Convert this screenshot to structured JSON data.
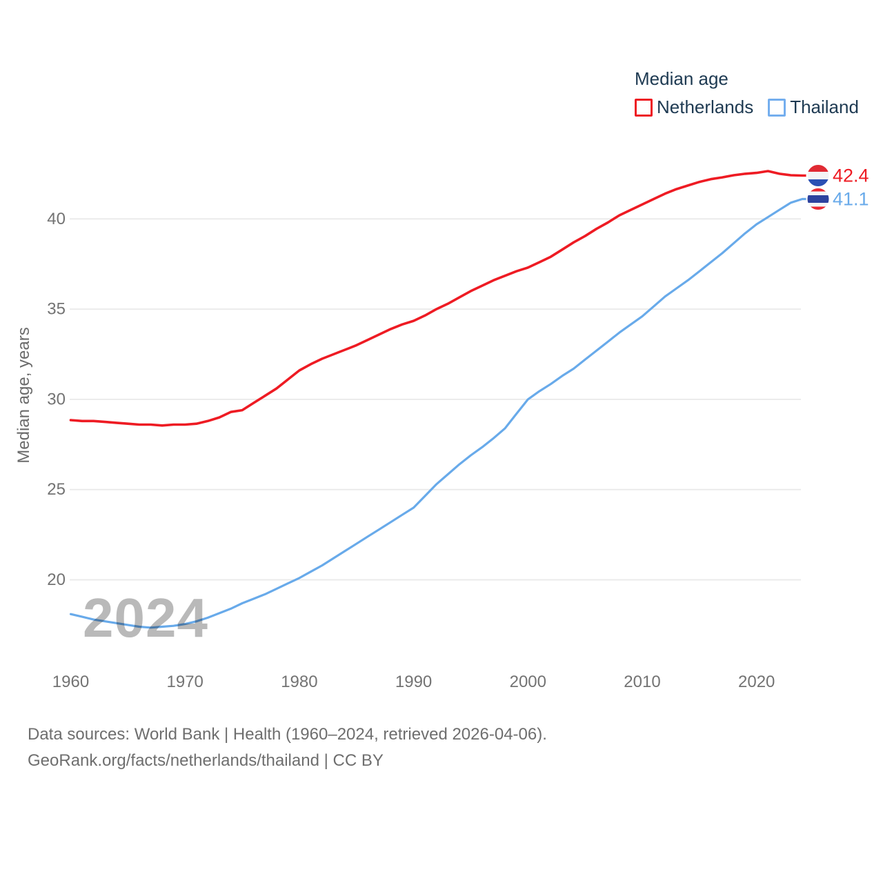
{
  "legend": {
    "title": "Median age",
    "items": [
      {
        "label": "Netherlands",
        "color": "#ee1b23"
      },
      {
        "label": "Thailand",
        "color": "#74aeee"
      }
    ]
  },
  "footer": {
    "line1": "Data sources: World Bank | Health (1960–2024, retrieved 2026-04-06).",
    "line2": "GeoRank.org/facts/netherlands/thailand | CC BY"
  },
  "chart_data": {
    "type": "line",
    "title": "Median age",
    "xlabel": "",
    "ylabel": "Median age, years",
    "grid": "horizontal",
    "legend_position": "top-right",
    "watermark": "2024",
    "xlim": [
      1960,
      2024
    ],
    "ylim": [
      17,
      43.5
    ],
    "xticks": [
      1960,
      1970,
      1980,
      1990,
      2000,
      2010,
      2020
    ],
    "yticks": [
      20,
      25,
      30,
      35,
      40
    ],
    "years": [
      1960,
      1961,
      1962,
      1963,
      1964,
      1965,
      1966,
      1967,
      1968,
      1969,
      1970,
      1971,
      1972,
      1973,
      1974,
      1975,
      1976,
      1977,
      1978,
      1979,
      1980,
      1981,
      1982,
      1983,
      1984,
      1985,
      1986,
      1987,
      1988,
      1989,
      1990,
      1991,
      1992,
      1993,
      1994,
      1995,
      1996,
      1997,
      1998,
      1999,
      2000,
      2001,
      2002,
      2003,
      2004,
      2005,
      2006,
      2007,
      2008,
      2009,
      2010,
      2011,
      2012,
      2013,
      2014,
      2015,
      2016,
      2017,
      2018,
      2019,
      2020,
      2021,
      2022,
      2023,
      2024
    ],
    "series": [
      {
        "name": "Netherlands",
        "color": "#ee1b23",
        "line_width": 3.6,
        "end_value": 42.4,
        "end_label": "42.4",
        "flag_icon": "netherlands-flag",
        "flag_stripes": [
          [
            "#e02a33",
            0.3333
          ],
          [
            "#f4f4f4",
            0.3334
          ],
          [
            "#2b50b4",
            0.3333
          ]
        ],
        "values": [
          28.85,
          28.8,
          28.8,
          28.75,
          28.7,
          28.65,
          28.6,
          28.6,
          28.55,
          28.6,
          28.6,
          28.65,
          28.8,
          29.0,
          29.3,
          29.4,
          29.8,
          30.2,
          30.6,
          31.1,
          31.6,
          31.95,
          32.25,
          32.5,
          32.75,
          33.0,
          33.3,
          33.6,
          33.9,
          34.15,
          34.35,
          34.65,
          35.0,
          35.3,
          35.65,
          36.0,
          36.3,
          36.6,
          36.85,
          37.1,
          37.3,
          37.6,
          37.9,
          38.3,
          38.7,
          39.05,
          39.45,
          39.8,
          40.2,
          40.5,
          40.8,
          41.1,
          41.4,
          41.65,
          41.85,
          42.05,
          42.2,
          42.3,
          42.42,
          42.5,
          42.55,
          42.65,
          42.5,
          42.42,
          42.4
        ]
      },
      {
        "name": "Thailand",
        "color": "#68aaea",
        "line_width": 3.2,
        "end_value": 41.1,
        "end_label": "41.1",
        "flag_icon": "thailand-flag",
        "flag_stripes": [
          [
            "#ea2a33",
            0.1667
          ],
          [
            "#f4f5f7",
            0.1667
          ],
          [
            "#2d429e",
            0.3332
          ],
          [
            "#f4f5f7",
            0.1667
          ],
          [
            "#ea2a33",
            0.1667
          ]
        ],
        "values": [
          18.1,
          17.95,
          17.8,
          17.7,
          17.6,
          17.5,
          17.4,
          17.35,
          17.4,
          17.45,
          17.55,
          17.7,
          17.9,
          18.15,
          18.4,
          18.7,
          18.95,
          19.2,
          19.5,
          19.8,
          20.1,
          20.45,
          20.8,
          21.2,
          21.6,
          22.0,
          22.4,
          22.8,
          23.2,
          23.6,
          24.0,
          24.65,
          25.3,
          25.85,
          26.4,
          26.9,
          27.35,
          27.85,
          28.4,
          29.2,
          30.0,
          30.45,
          30.85,
          31.3,
          31.7,
          32.2,
          32.7,
          33.2,
          33.7,
          34.15,
          34.6,
          35.15,
          35.7,
          36.15,
          36.6,
          37.1,
          37.6,
          38.1,
          38.65,
          39.2,
          39.7,
          40.1,
          40.5,
          40.9,
          41.1
        ]
      }
    ],
    "colors": {
      "grid": "#e9e9e9",
      "tick_text": "#737373",
      "axis_title_text": "#6b6b6b",
      "watermark": "#b9b9b9",
      "legend_text": "#1e3a52",
      "background": "#ffffff"
    }
  }
}
